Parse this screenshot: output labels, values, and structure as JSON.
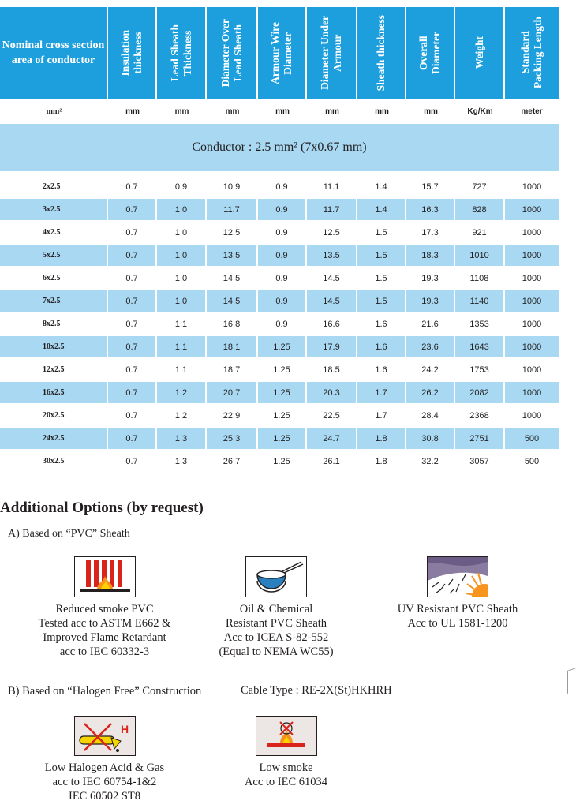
{
  "header": {
    "col0": "Nominal cross section area of conductor",
    "cols": [
      "Insulation\nthickness",
      "Lead Sheath\nThickness",
      "Diameter Over\nLead Sheath",
      "Armour Wire\nDiameter",
      "Diameter Under\nArmour",
      "Sheath thickness",
      "Overall\nDiameter",
      "Weight",
      "Standard\nPacking Length"
    ]
  },
  "units": [
    "mm²",
    "mm",
    "mm",
    "mm",
    "mm",
    "mm",
    "mm",
    "mm",
    "Kg/Km",
    "meter"
  ],
  "conductor_label": "Conductor : 2.5 mm² (7x0.67 mm)",
  "rows": [
    [
      "2x2.5",
      "0.7",
      "0.9",
      "10.9",
      "0.9",
      "11.1",
      "1.4",
      "15.7",
      "727",
      "1000"
    ],
    [
      "3x2.5",
      "0.7",
      "1.0",
      "11.7",
      "0.9",
      "11.7",
      "1.4",
      "16.3",
      "828",
      "1000"
    ],
    [
      "4x2.5",
      "0.7",
      "1.0",
      "12.5",
      "0.9",
      "12.5",
      "1.5",
      "17.3",
      "921",
      "1000"
    ],
    [
      "5x2.5",
      "0.7",
      "1.0",
      "13.5",
      "0.9",
      "13.5",
      "1.5",
      "18.3",
      "1010",
      "1000"
    ],
    [
      "6x2.5",
      "0.7",
      "1.0",
      "14.5",
      "0.9",
      "14.5",
      "1.5",
      "19.3",
      "1108",
      "1000"
    ],
    [
      "7x2.5",
      "0.7",
      "1.0",
      "14.5",
      "0.9",
      "14.5",
      "1.5",
      "19.3",
      "1140",
      "1000"
    ],
    [
      "8x2.5",
      "0.7",
      "1.1",
      "16.8",
      "0.9",
      "16.6",
      "1.6",
      "21.6",
      "1353",
      "1000"
    ],
    [
      "10x2.5",
      "0.7",
      "1.1",
      "18.1",
      "1.25",
      "17.9",
      "1.6",
      "23.6",
      "1643",
      "1000"
    ],
    [
      "12x2.5",
      "0.7",
      "1.1",
      "18.7",
      "1.25",
      "18.5",
      "1.6",
      "24.2",
      "1753",
      "1000"
    ],
    [
      "16x2.5",
      "0.7",
      "1.2",
      "20.7",
      "1.25",
      "20.3",
      "1.7",
      "26.2",
      "2082",
      "1000"
    ],
    [
      "20x2.5",
      "0.7",
      "1.2",
      "22.9",
      "1.25",
      "22.5",
      "1.7",
      "28.4",
      "2368",
      "1000"
    ],
    [
      "24x2.5",
      "0.7",
      "1.3",
      "25.3",
      "1.25",
      "24.7",
      "1.8",
      "30.8",
      "2751",
      "500"
    ],
    [
      "30x2.5",
      "0.7",
      "1.3",
      "26.7",
      "1.25",
      "26.1",
      "1.8",
      "32.2",
      "3057",
      "500"
    ]
  ],
  "options": {
    "title": "Additional Options (by request)",
    "section_a": "A) Based on “PVC” Sheath",
    "section_b": "B) Based on “Halogen Free” Construction",
    "cable_type": "Cable Type : RE-2X(St)HKHRH",
    "items_a": [
      {
        "icon": "reduced-smoke-icon",
        "text": "Reduced smoke PVC\nTested acc to ASTM E662 &\nImproved Flame Retardant\nacc to IEC 60332-3"
      },
      {
        "icon": "oil-chemical-icon",
        "text": "Oil & Chemical\nResistant PVC Sheath\nAcc to ICEA S-82-552\n(Equal to NEMA WC55)"
      },
      {
        "icon": "uv-resistant-icon",
        "text": "UV Resistant PVC Sheath\nAcc to UL 1581-1200"
      }
    ],
    "items_b": [
      {
        "icon": "low-halogen-icon",
        "text": "Low Halogen Acid & Gas\nacc to IEC 60754-1&2\nIEC 60502 ST8"
      },
      {
        "icon": "low-smoke-icon",
        "text": "Low smoke\nAcc to IEC 61034"
      }
    ]
  },
  "colors": {
    "header_blue": "#1e9fdd",
    "band_blue": "#a8d8f2"
  }
}
